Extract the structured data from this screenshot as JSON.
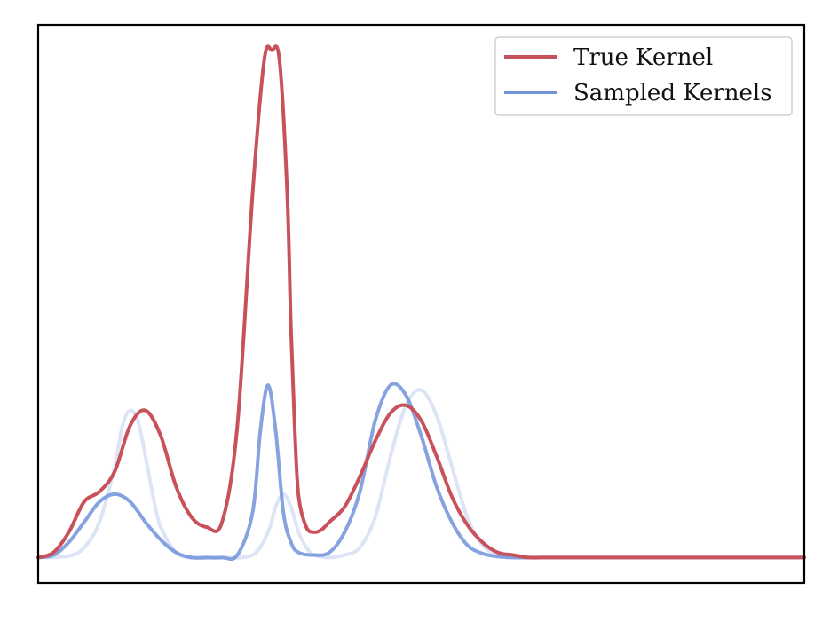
{
  "chart_data": {
    "type": "line",
    "title": "",
    "xlabel": "",
    "ylabel": "",
    "grid": false,
    "ticks": false,
    "legend": {
      "placement": "top-right"
    },
    "xlim": [
      0,
      10
    ],
    "ylim": [
      -0.05,
      1.05
    ],
    "series": [
      {
        "name": "True Kernel",
        "color": "#c8515a",
        "opacity": 1,
        "x": [
          0.0,
          0.2,
          0.4,
          0.6,
          0.8,
          1.0,
          1.2,
          1.4,
          1.6,
          1.8,
          2.0,
          2.2,
          2.4,
          2.6,
          2.8,
          2.95,
          3.05,
          3.15,
          3.25,
          3.3,
          3.35,
          3.4,
          3.5,
          3.6,
          3.7,
          3.8,
          4.0,
          4.2,
          4.4,
          4.6,
          4.8,
          5.0,
          5.2,
          5.4,
          5.6,
          5.8,
          6.0,
          6.2,
          6.4,
          6.6,
          6.8,
          7.0,
          7.5,
          8.0,
          9.0,
          10.0
        ],
        "y": [
          0.0,
          0.01,
          0.05,
          0.11,
          0.13,
          0.17,
          0.26,
          0.29,
          0.24,
          0.14,
          0.08,
          0.06,
          0.07,
          0.26,
          0.72,
          0.98,
          1.0,
          0.98,
          0.72,
          0.45,
          0.25,
          0.12,
          0.06,
          0.05,
          0.055,
          0.07,
          0.1,
          0.16,
          0.23,
          0.285,
          0.3,
          0.27,
          0.2,
          0.12,
          0.065,
          0.03,
          0.01,
          0.005,
          0.0,
          0.0,
          0.0,
          0.0,
          0.0,
          0.0,
          0.0,
          0.0
        ]
      },
      {
        "name": "Sampled Kernels",
        "color": "#7193da",
        "opacity": 0.85,
        "x": [
          0.0,
          0.2,
          0.4,
          0.6,
          0.8,
          1.0,
          1.2,
          1.4,
          1.6,
          1.8,
          2.0,
          2.2,
          2.4,
          2.6,
          2.8,
          2.9,
          3.0,
          3.1,
          3.2,
          3.3,
          3.4,
          3.6,
          3.8,
          4.0,
          4.2,
          4.4,
          4.6,
          4.8,
          5.0,
          5.2,
          5.4,
          5.6,
          5.8,
          6.0,
          6.2,
          6.4,
          7.0,
          8.0,
          9.0,
          10.0
        ],
        "y": [
          0.0,
          0.005,
          0.03,
          0.07,
          0.11,
          0.125,
          0.11,
          0.07,
          0.035,
          0.01,
          0.0,
          0.0,
          0.0,
          0.005,
          0.09,
          0.25,
          0.34,
          0.25,
          0.09,
          0.03,
          0.01,
          0.005,
          0.01,
          0.05,
          0.13,
          0.27,
          0.34,
          0.32,
          0.24,
          0.14,
          0.07,
          0.025,
          0.008,
          0.002,
          0.0,
          0.0,
          0.0,
          0.0,
          0.0,
          0.0
        ]
      },
      {
        "name": "",
        "color": "#c4d2f0",
        "opacity": 0.6,
        "x": [
          0.0,
          0.4,
          0.6,
          0.8,
          1.0,
          1.1,
          1.2,
          1.3,
          1.4,
          1.5,
          1.6,
          1.8,
          2.0,
          2.4,
          2.8,
          3.0,
          3.1,
          3.2,
          3.3,
          3.4,
          3.5,
          3.6,
          3.8,
          4.0,
          4.2,
          4.4,
          4.6,
          4.8,
          5.0,
          5.2,
          5.4,
          5.6,
          5.8,
          6.0,
          6.2,
          6.4,
          7.0,
          8.0,
          10.0
        ],
        "y": [
          0.0,
          0.003,
          0.02,
          0.07,
          0.18,
          0.26,
          0.29,
          0.27,
          0.2,
          0.12,
          0.06,
          0.01,
          0.0,
          0.0,
          0.005,
          0.05,
          0.1,
          0.125,
          0.1,
          0.05,
          0.02,
          0.005,
          0.0,
          0.005,
          0.02,
          0.08,
          0.2,
          0.3,
          0.33,
          0.28,
          0.18,
          0.08,
          0.025,
          0.005,
          0.0,
          0.0,
          0.0,
          0.0,
          0.0
        ]
      }
    ],
    "legend_entries": [
      "True Kernel",
      "Sampled Kernels"
    ]
  }
}
